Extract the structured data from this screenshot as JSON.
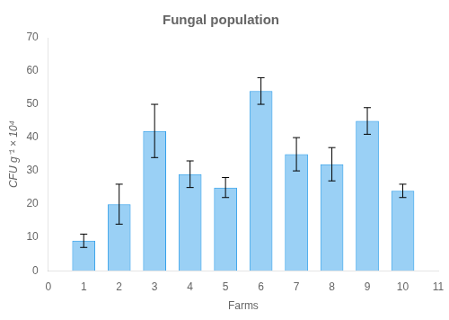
{
  "chart_data": {
    "type": "bar",
    "title": "Fungal population",
    "xlabel": "Farms",
    "ylabel": "CFU g⁻¹ × 10⁴",
    "x": [
      1,
      2,
      3,
      4,
      5,
      6,
      7,
      8,
      9,
      10
    ],
    "values": [
      9,
      20,
      42,
      29,
      25,
      54,
      35,
      32,
      45,
      24
    ],
    "errors": [
      2,
      6,
      8,
      4,
      3,
      4,
      5,
      5,
      4,
      2
    ],
    "xlim": [
      0,
      11
    ],
    "xticks": [
      0,
      1,
      2,
      3,
      4,
      5,
      6,
      7,
      8,
      9,
      10,
      11
    ],
    "ylim": [
      0,
      70
    ],
    "yticks": [
      0,
      10,
      20,
      30,
      40,
      50,
      60,
      70
    ],
    "grid": false
  }
}
